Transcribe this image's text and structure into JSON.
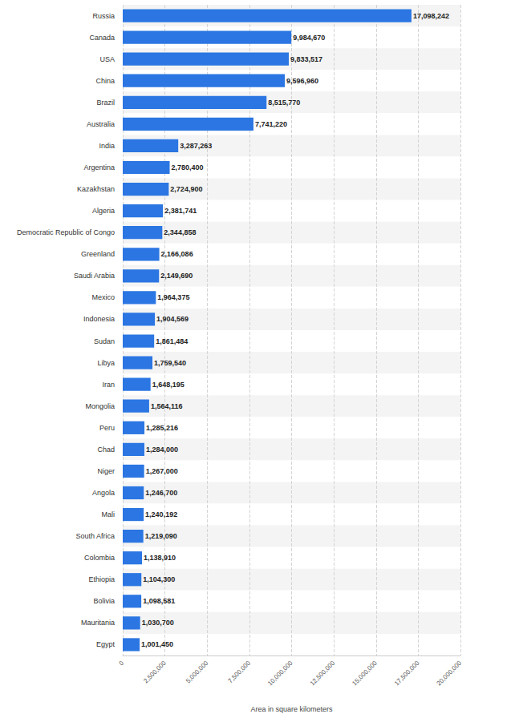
{
  "chart_data": {
    "type": "bar",
    "orientation": "horizontal",
    "x_label": "Area in square kilometers",
    "categories": [
      "Russia",
      "Canada",
      "USA",
      "China",
      "Brazil",
      "Australia",
      "India",
      "Argentina",
      "Kazakhstan",
      "Algeria",
      "Democratic Republic of Congo",
      "Greenland",
      "Saudi Arabia",
      "Mexico",
      "Indonesia",
      "Sudan",
      "Libya",
      "Iran",
      "Mongolia",
      "Peru",
      "Chad",
      "Niger",
      "Angola",
      "Mali",
      "South Africa",
      "Colombia",
      "Ethiopia",
      "Bolivia",
      "Mauritania",
      "Egypt"
    ],
    "values": [
      17098242,
      9984670,
      9833517,
      9596960,
      8515770,
      7741220,
      3287263,
      2780400,
      2724900,
      2381741,
      2344858,
      2166086,
      2149690,
      1964375,
      1904569,
      1861484,
      1759540,
      1648195,
      1564116,
      1285216,
      1284000,
      1267000,
      1246700,
      1240192,
      1219090,
      1138910,
      1104300,
      1098581,
      1030700,
      1001450
    ],
    "value_labels": [
      "17,098,242",
      "9,984,670",
      "9,833,517",
      "9,596,960",
      "8,515,770",
      "7,741,220",
      "3,287,263",
      "2,780,400",
      "2,724,900",
      "2,381,741",
      "2,344,858",
      "2,166,086",
      "2,149,690",
      "1,964,375",
      "1,904,569",
      "1,861,484",
      "1,759,540",
      "1,648,195",
      "1,564,116",
      "1,285,216",
      "1,284,000",
      "1,267,000",
      "1,246,700",
      "1,240,192",
      "1,219,090",
      "1,138,910",
      "1,104,300",
      "1,098,581",
      "1,030,700",
      "1,001,450"
    ],
    "color": "#2b76e2",
    "data_labels": true,
    "grid": true,
    "xlim": [
      0,
      20000000
    ],
    "xticks": [
      0,
      {
        "value": 2500000,
        "label": "2,500,000"
      },
      {
        "value": 5000000,
        "label": "5,000,000"
      },
      {
        "value": 7500000,
        "label": "7,500,000"
      },
      {
        "value": 10000000,
        "label": "10,000,000"
      },
      {
        "value": 12500000,
        "label": "12,500,000"
      },
      {
        "value": 15000000,
        "label": "15,000,000"
      },
      {
        "value": 17500000,
        "label": "17,500,000"
      },
      {
        "value": 20000000,
        "label": "20,000,000"
      }
    ]
  }
}
